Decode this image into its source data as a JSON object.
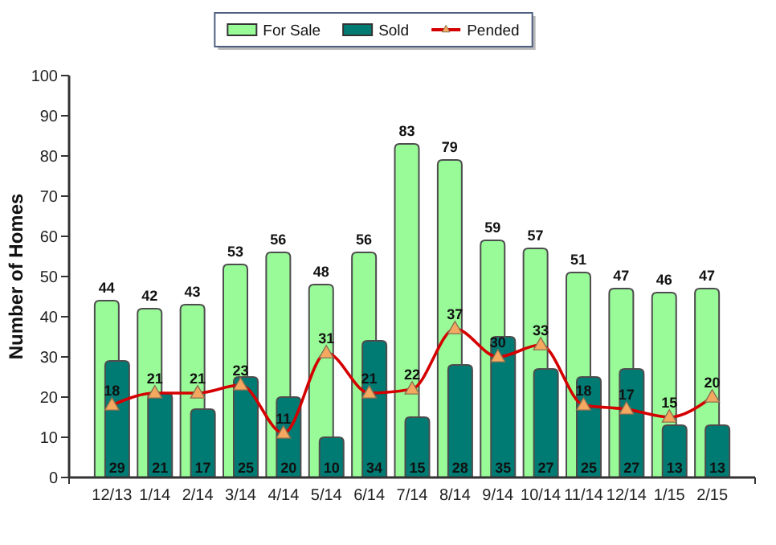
{
  "chart_data": {
    "type": "bar",
    "ylabel": "Number of Homes",
    "categories": [
      "12/13",
      "1/14",
      "2/14",
      "3/14",
      "4/14",
      "5/14",
      "6/14",
      "7/14",
      "8/14",
      "9/14",
      "10/14",
      "11/14",
      "12/14",
      "1/15",
      "2/15"
    ],
    "series": [
      {
        "name": "For Sale",
        "color": "#98fb98",
        "values": [
          44,
          42,
          43,
          53,
          56,
          48,
          56,
          83,
          79,
          59,
          57,
          51,
          47,
          46,
          47
        ]
      },
      {
        "name": "Sold",
        "color": "#007b74",
        "values": [
          29,
          21,
          17,
          25,
          20,
          10,
          34,
          15,
          28,
          35,
          27,
          25,
          27,
          13,
          13
        ]
      },
      {
        "name": "Pended",
        "type": "line",
        "color": "#d40000",
        "marker": "triangle",
        "values": [
          18,
          21,
          21,
          23,
          11,
          31,
          21,
          22,
          37,
          30,
          33,
          18,
          17,
          15,
          20
        ]
      }
    ],
    "ylim": [
      0,
      100
    ],
    "yticks": [
      0,
      10,
      20,
      30,
      40,
      50,
      60,
      70,
      80,
      90,
      100
    ],
    "legend": "top",
    "data_labels": true
  }
}
